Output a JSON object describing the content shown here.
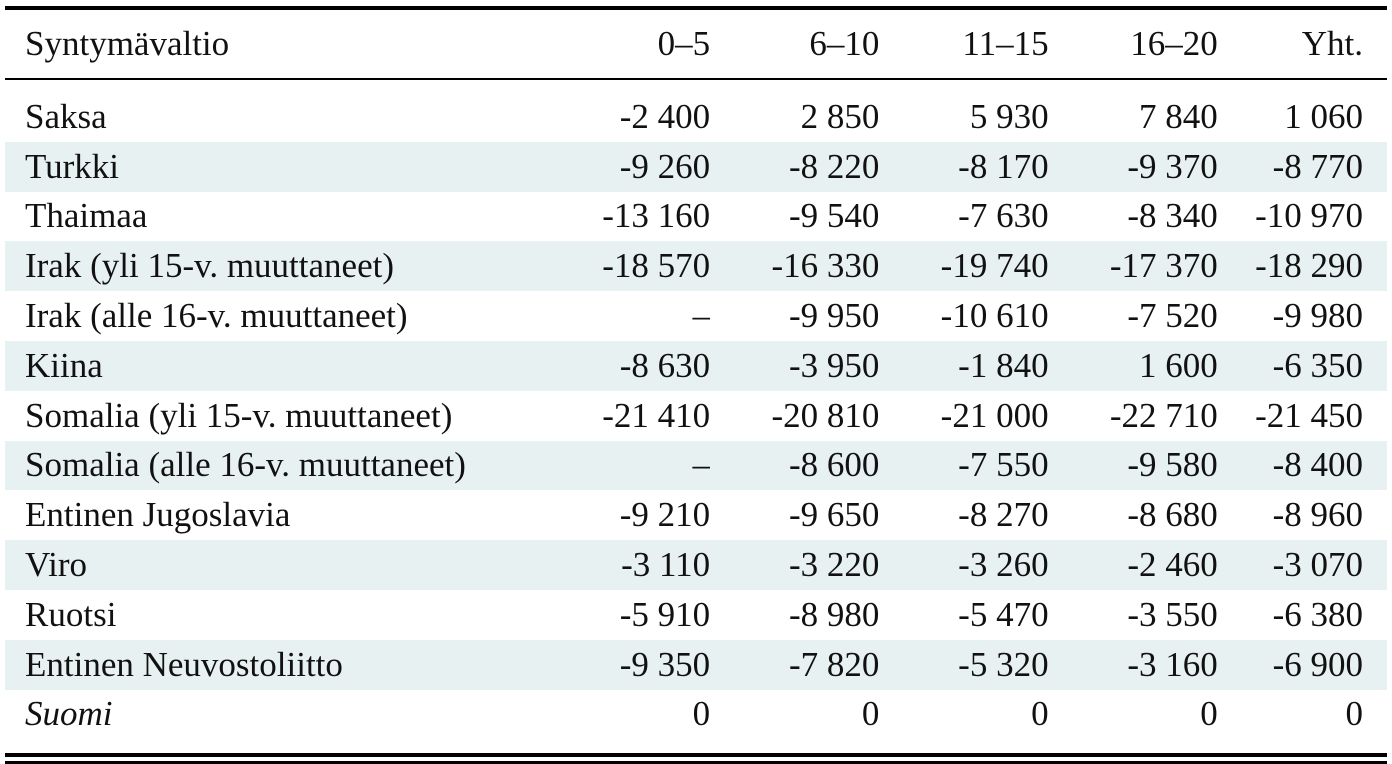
{
  "table": {
    "header": {
      "country": "Syntymävaltio",
      "c1": "0–5",
      "c2": "6–10",
      "c3": "11–15",
      "c4": "16–20",
      "c5": "Yht."
    },
    "rows": [
      {
        "country": "Saksa",
        "v1": "-2 400",
        "v2": "2 850",
        "v3": "5 930",
        "v4": "7 840",
        "v5": "1 060"
      },
      {
        "country": "Turkki",
        "v1": "-9 260",
        "v2": "-8 220",
        "v3": "-8 170",
        "v4": "-9 370",
        "v5": "-8 770"
      },
      {
        "country": "Thaimaa",
        "v1": "-13 160",
        "v2": "-9 540",
        "v3": "-7 630",
        "v4": "-8 340",
        "v5": "-10 970"
      },
      {
        "country": "Irak (yli 15-v. muuttaneet)",
        "v1": "-18 570",
        "v2": "-16 330",
        "v3": "-19 740",
        "v4": "-17 370",
        "v5": "-18 290"
      },
      {
        "country": "Irak (alle 16-v. muuttaneet)",
        "v1": "–",
        "v2": "-9 950",
        "v3": "-10 610",
        "v4": "-7 520",
        "v5": "-9 980"
      },
      {
        "country": "Kiina",
        "v1": "-8 630",
        "v2": "-3 950",
        "v3": "-1 840",
        "v4": "1 600",
        "v5": "-6 350"
      },
      {
        "country": "Somalia (yli 15-v. muuttaneet)",
        "v1": "-21 410",
        "v2": "-20 810",
        "v3": "-21 000",
        "v4": "-22 710",
        "v5": "-21 450"
      },
      {
        "country": "Somalia (alle 16-v. muuttaneet)",
        "v1": "–",
        "v2": "-8 600",
        "v3": "-7 550",
        "v4": "-9 580",
        "v5": "-8 400"
      },
      {
        "country": "Entinen Jugoslavia",
        "v1": "-9 210",
        "v2": "-9 650",
        "v3": "-8 270",
        "v4": "-8 680",
        "v5": "-8 960"
      },
      {
        "country": "Viro",
        "v1": "-3 110",
        "v2": "-3 220",
        "v3": "-3 260",
        "v4": "-2 460",
        "v5": "-3 070"
      },
      {
        "country": "Ruotsi",
        "v1": "-5 910",
        "v2": "-8 980",
        "v3": "-5 470",
        "v4": "-3 550",
        "v5": "-6 380"
      },
      {
        "country": "Entinen Neuvostoliitto",
        "v1": "-9 350",
        "v2": "-7 820",
        "v3": "-5 320",
        "v4": "-3 160",
        "v5": "-6 900"
      },
      {
        "country": "Suomi",
        "v1": "0",
        "v2": "0",
        "v3": "0",
        "v4": "0",
        "v5": "0"
      }
    ]
  },
  "colors": {
    "stripe": "#e8f1f1",
    "text": "#111111",
    "rule": "#000000"
  }
}
